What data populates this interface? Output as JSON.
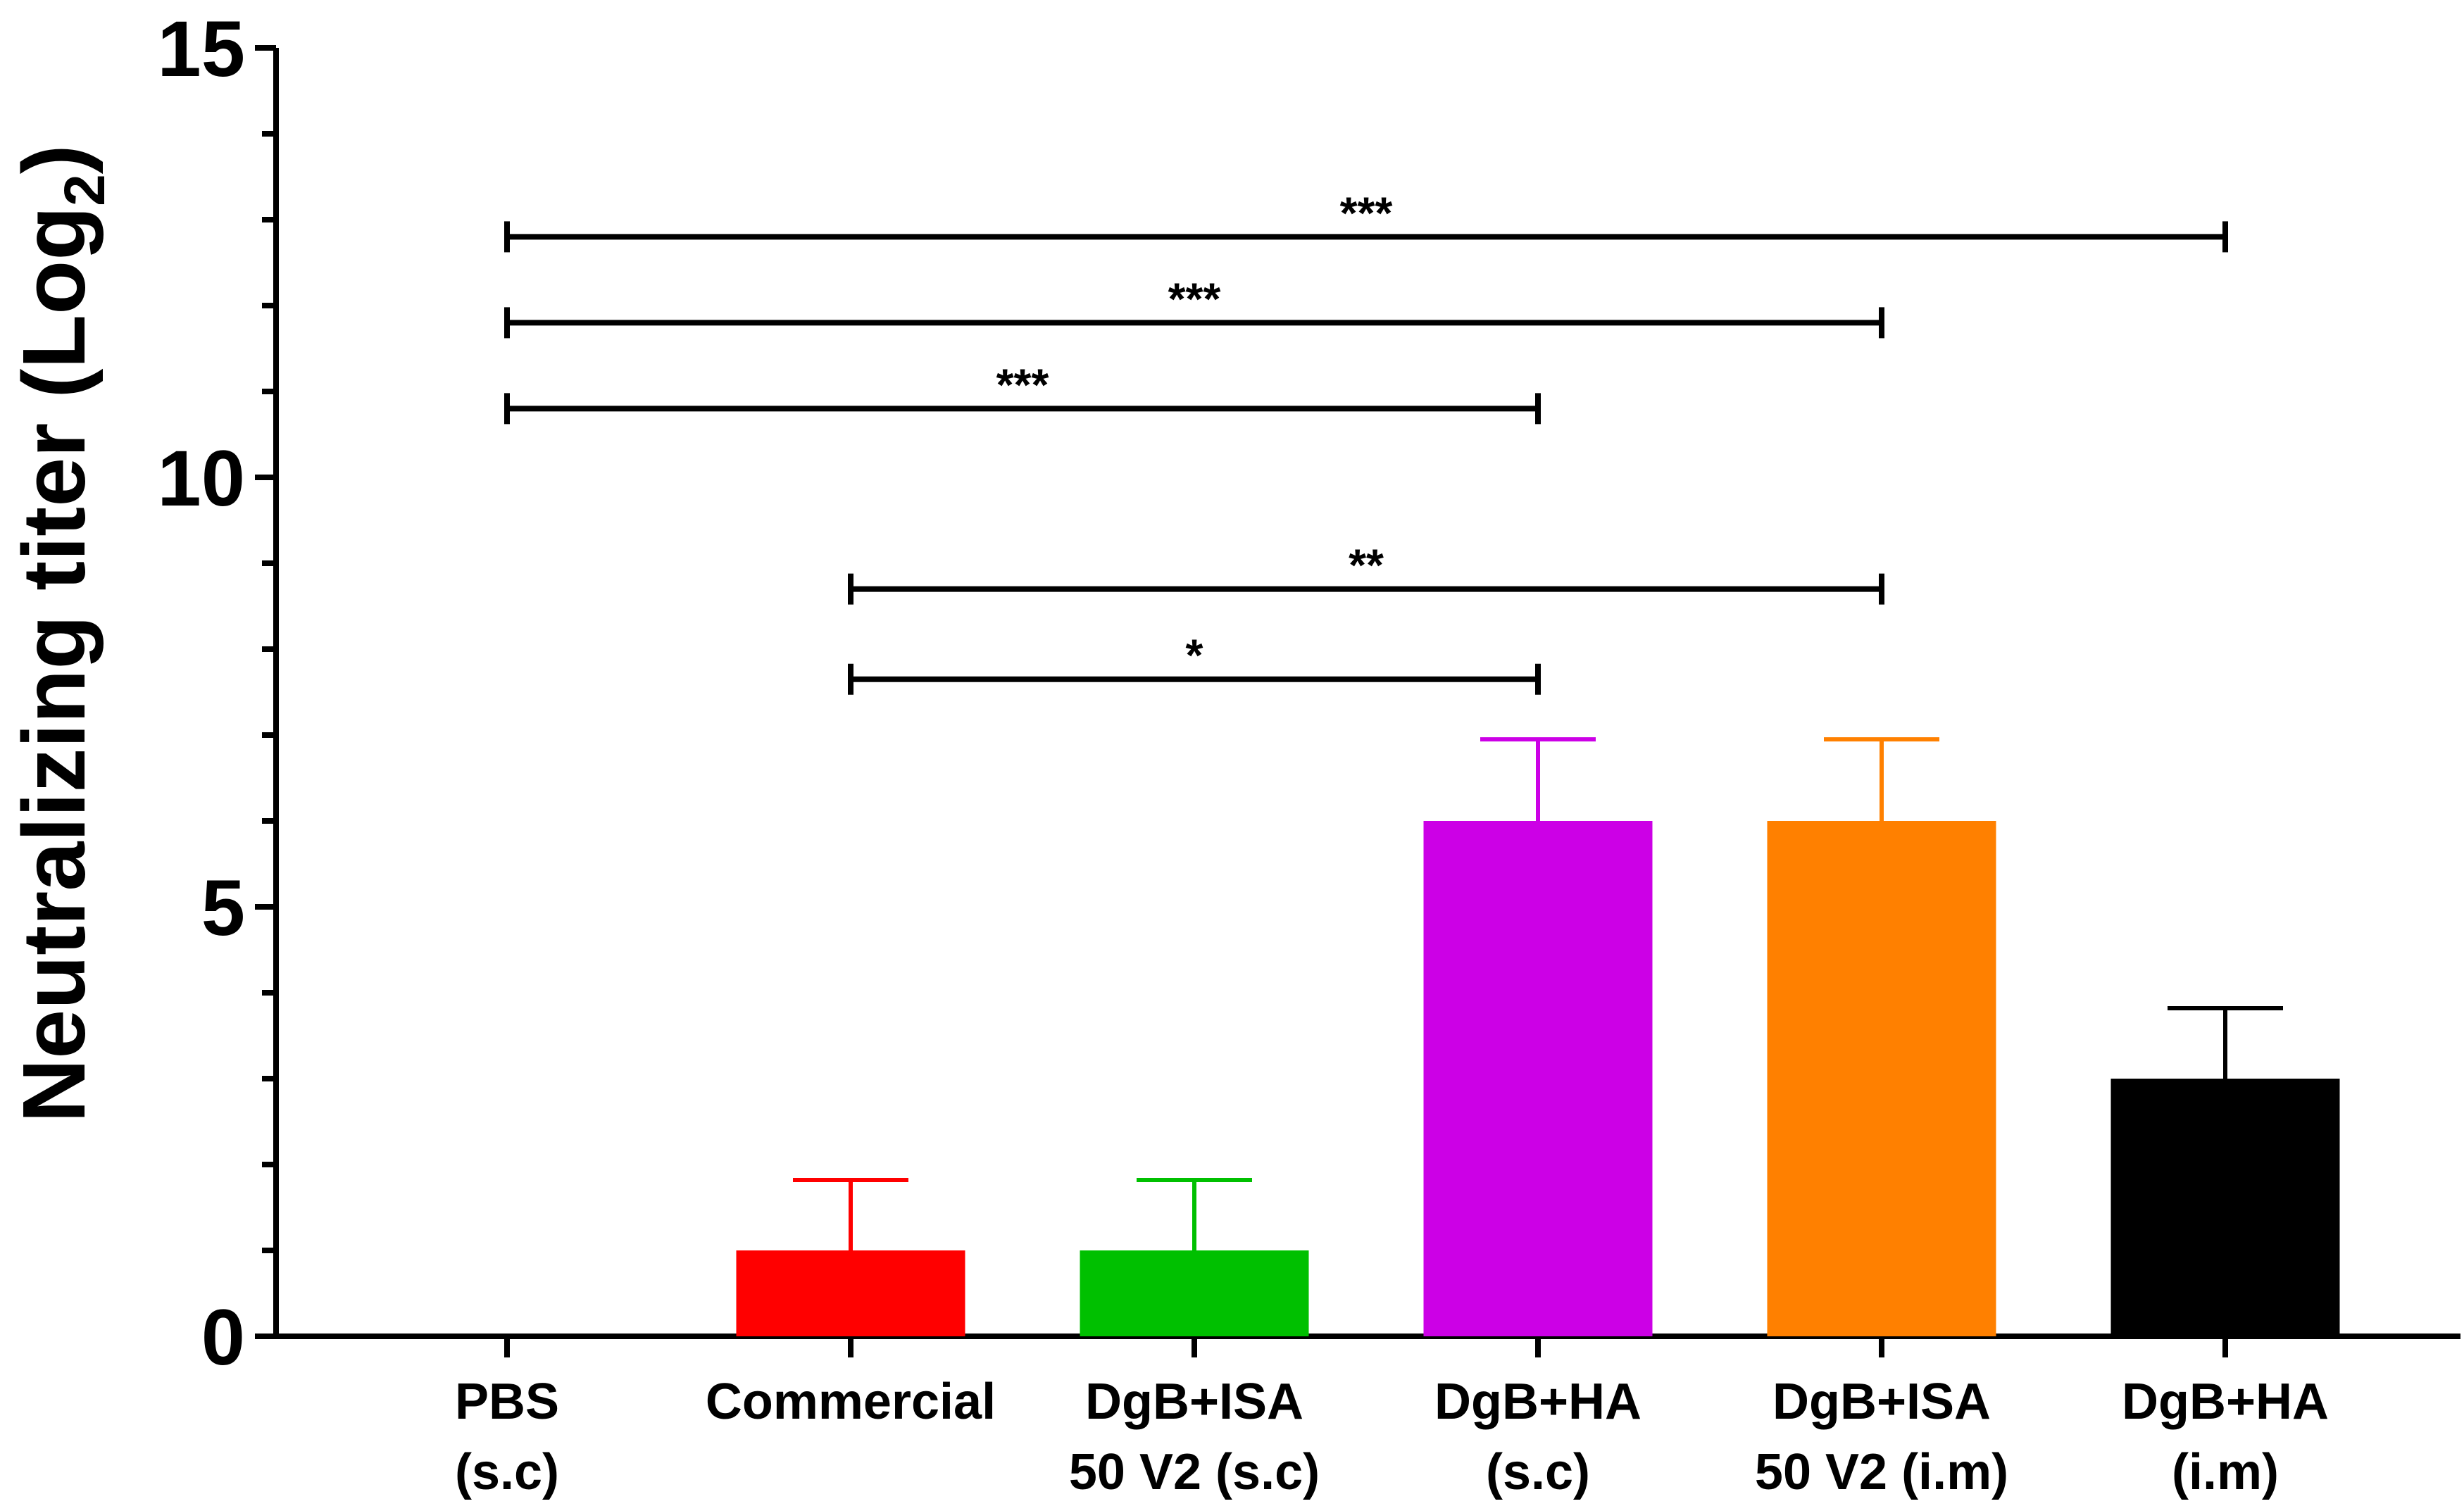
{
  "chart_data": {
    "type": "bar",
    "title": "",
    "xlabel": "",
    "ylabel": "Neutralizing titer (Log",
    "ylabel_subscript": "2",
    "ylabel_close": ")",
    "ylim": [
      0,
      15
    ],
    "yticks": [
      0,
      5,
      10,
      15
    ],
    "yminor_step": 1,
    "categories": [
      [
        "PBS",
        "(s.c)"
      ],
      [
        "Commercial"
      ],
      [
        "DgB+ISA",
        "50 V2 (s.c)"
      ],
      [
        "DgB+HA",
        "(s.c)"
      ],
      [
        "DgB+ISA",
        "50 V2 (i.m)"
      ],
      [
        "DgB+HA",
        "(i.m)"
      ]
    ],
    "values": [
      0,
      1,
      1,
      6,
      6,
      3
    ],
    "errors": [
      0,
      0.82,
      0.82,
      0.95,
      0.95,
      0.82
    ],
    "colors": [
      "#ffffff",
      "#ff0000",
      "#00c000",
      "#cc00e6",
      "#ff8000",
      "#000000"
    ],
    "comparisons": [
      {
        "from": 0,
        "to": 5,
        "y": 12.8,
        "label": "***"
      },
      {
        "from": 0,
        "to": 4,
        "y": 11.8,
        "label": "***"
      },
      {
        "from": 0,
        "to": 3,
        "y": 10.8,
        "label": "***"
      },
      {
        "from": 1,
        "to": 4,
        "y": 8.7,
        "label": "**"
      },
      {
        "from": 1,
        "to": 3,
        "y": 7.65,
        "label": "*"
      }
    ]
  }
}
